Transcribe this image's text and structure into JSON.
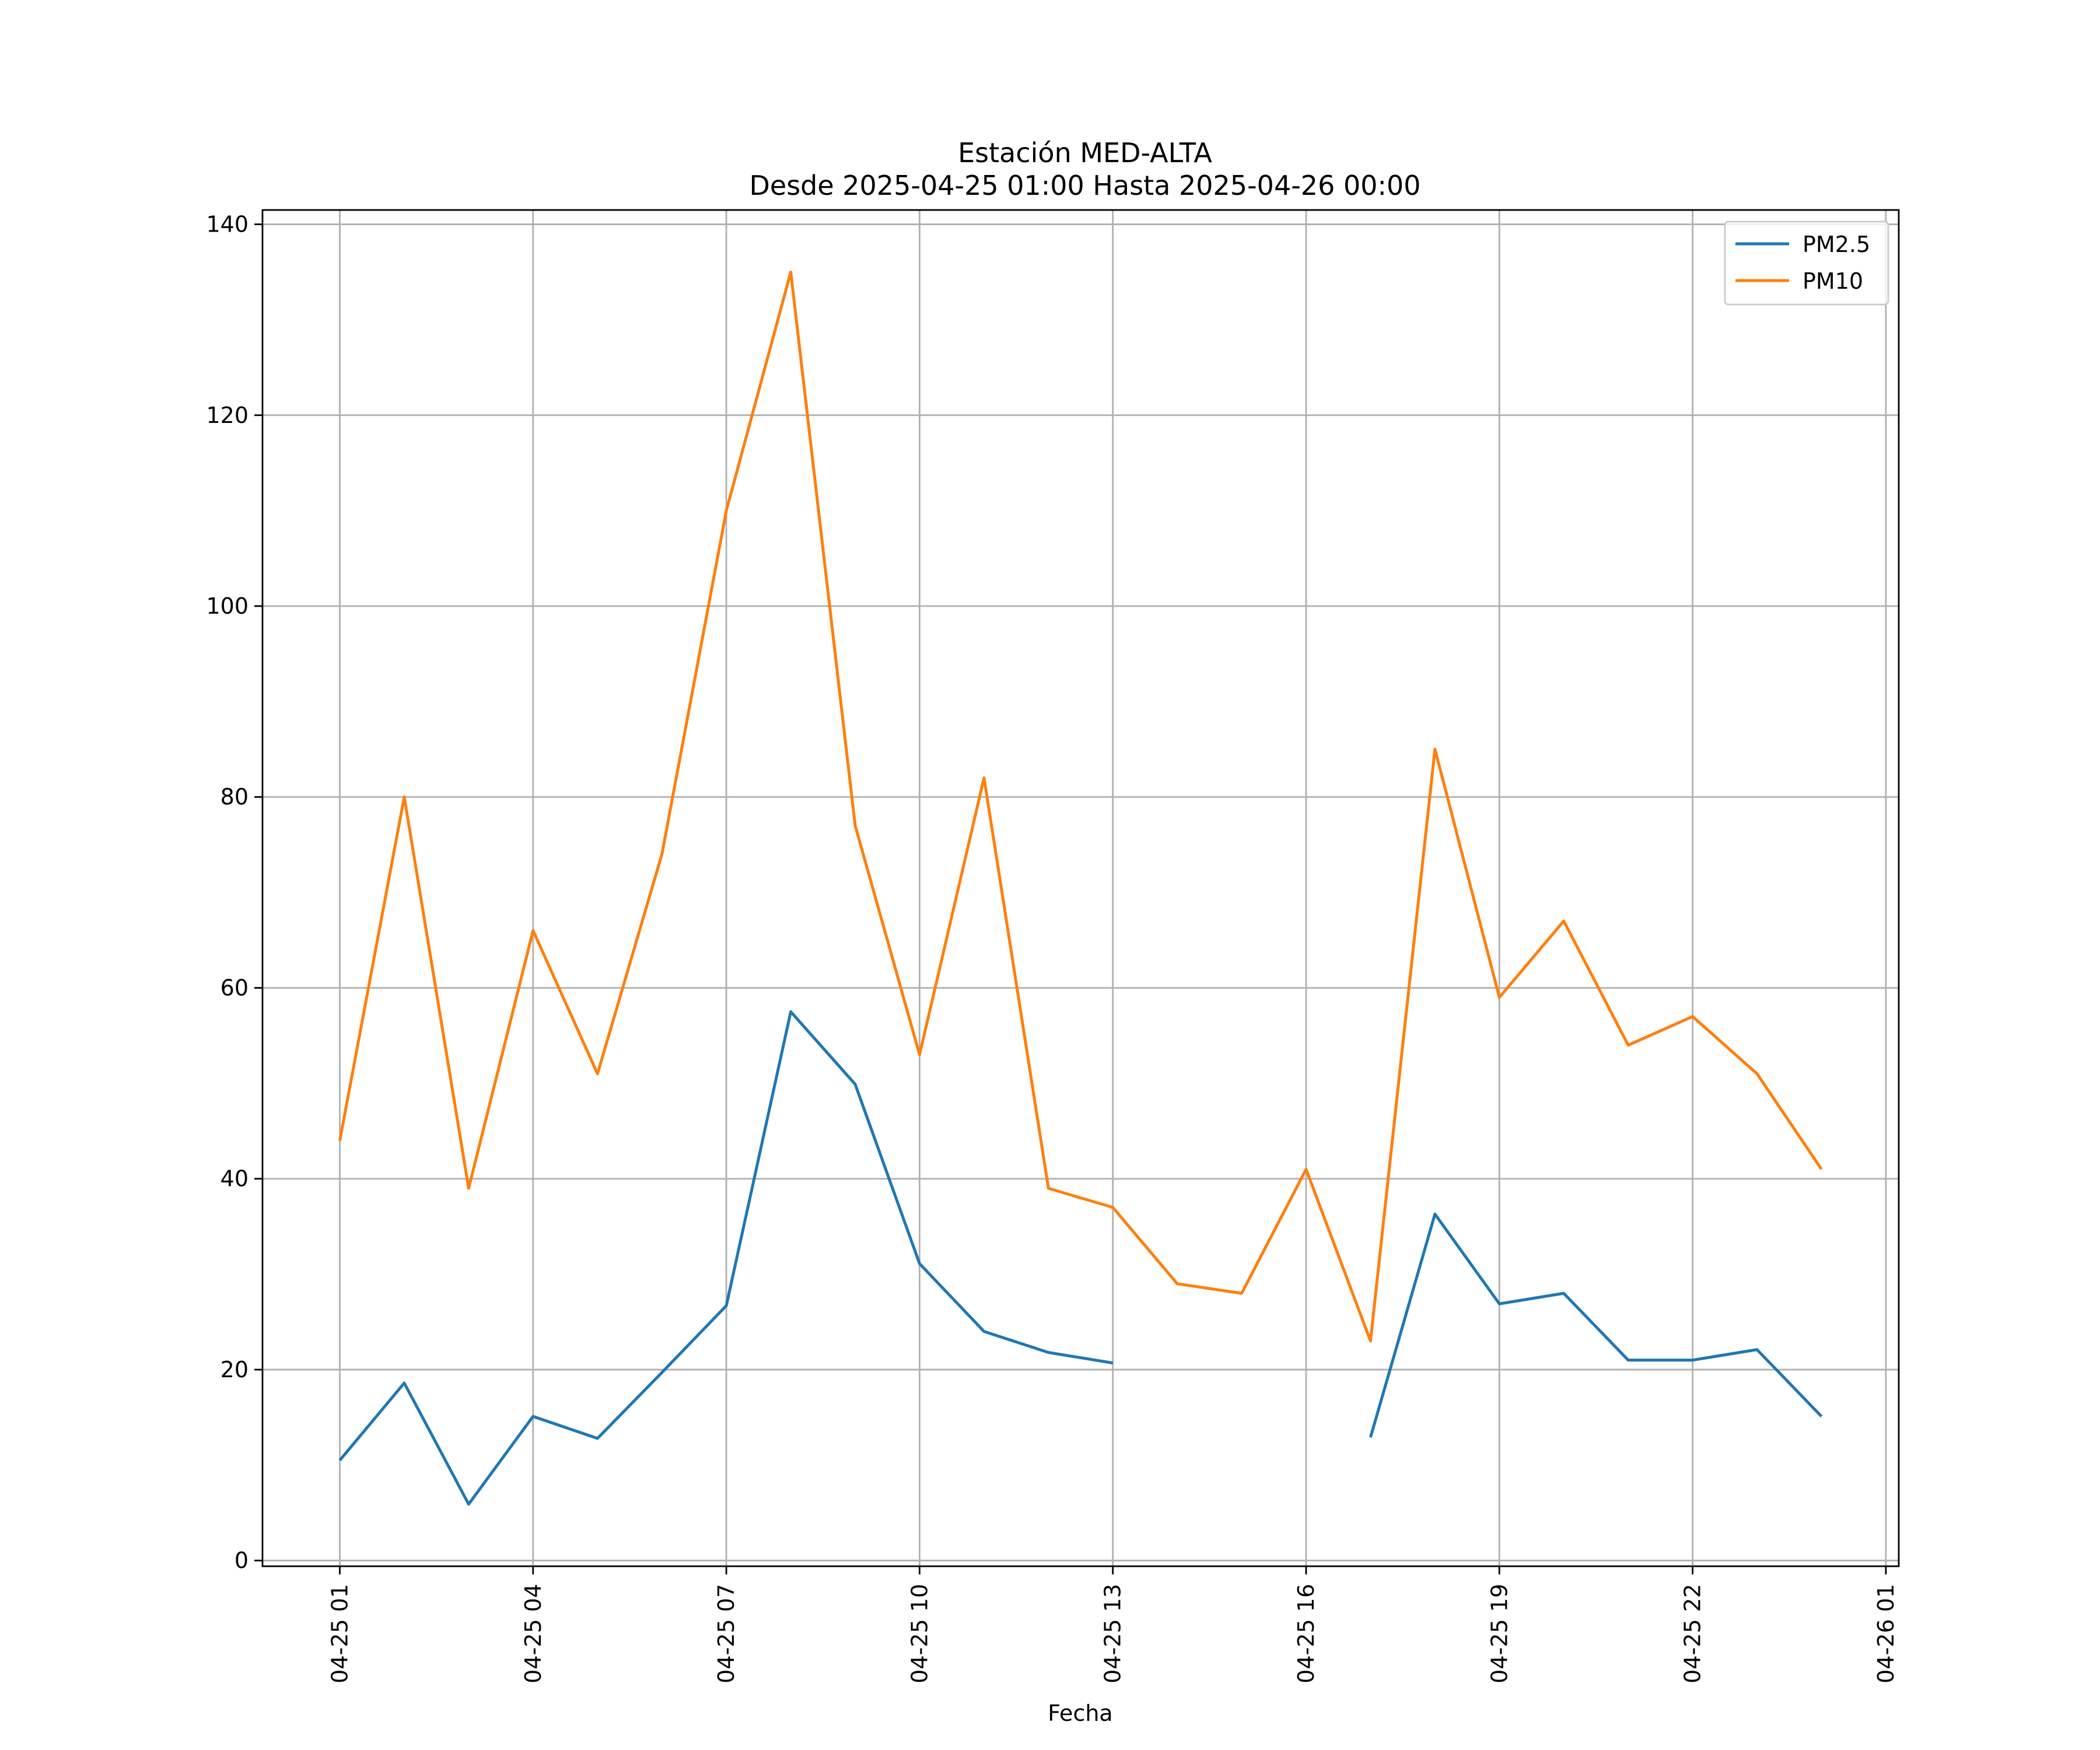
{
  "chart_data": {
    "type": "line",
    "title": "Estación MED-ALTA",
    "subtitle": "Desde 2025-04-25 01:00 Hasta 2025-04-26 00:00",
    "xlabel": "Fecha",
    "ylabel": "",
    "x": [
      "2025-04-25 01:00",
      "2025-04-25 02:00",
      "2025-04-25 03:00",
      "2025-04-25 04:00",
      "2025-04-25 05:00",
      "2025-04-25 06:00",
      "2025-04-25 07:00",
      "2025-04-25 08:00",
      "2025-04-25 09:00",
      "2025-04-25 10:00",
      "2025-04-25 11:00",
      "2025-04-25 12:00",
      "2025-04-25 13:00",
      "2025-04-25 14:00",
      "2025-04-25 15:00",
      "2025-04-25 16:00",
      "2025-04-25 17:00",
      "2025-04-25 18:00",
      "2025-04-25 19:00",
      "2025-04-25 20:00",
      "2025-04-25 21:00",
      "2025-04-25 22:00",
      "2025-04-25 23:00",
      "2025-04-26 00:00"
    ],
    "x_ticks": [
      "2025-04-25 01:00",
      "2025-04-25 04:00",
      "2025-04-25 07:00",
      "2025-04-25 10:00",
      "2025-04-25 13:00",
      "2025-04-25 16:00",
      "2025-04-25 19:00",
      "2025-04-25 22:00",
      "2025-04-26 01:00"
    ],
    "x_tick_labels": [
      "04-25 01",
      "04-25 04",
      "04-25 07",
      "04-25 10",
      "04-25 13",
      "04-25 16",
      "04-25 19",
      "04-25 22",
      "04-26 01"
    ],
    "xlim": [
      "2025-04-24 23:48",
      "2025-04-26 01:12"
    ],
    "ylim": [
      -0.6,
      141.5
    ],
    "y_ticks": [
      0,
      20,
      40,
      60,
      80,
      100,
      120,
      140
    ],
    "grid": true,
    "legend_position": "top-right",
    "series": [
      {
        "name": "PM2.5",
        "color": "#1f77b4",
        "values": [
          10.5,
          18.6,
          5.9,
          15.1,
          12.8,
          19.7,
          26.7,
          57.5,
          49.9,
          31.1,
          24.0,
          21.8,
          20.7,
          null,
          null,
          null,
          12.9,
          36.3,
          26.9,
          28.0,
          21.0,
          21.0,
          22.1,
          15.1
        ]
      },
      {
        "name": "PM10",
        "color": "#ff7f0e",
        "values": [
          44,
          80,
          39,
          66,
          51,
          74,
          110,
          135,
          77,
          53,
          82,
          39,
          37,
          29,
          28,
          41,
          23,
          85,
          59,
          67,
          54,
          57,
          51,
          41
        ]
      }
    ]
  }
}
